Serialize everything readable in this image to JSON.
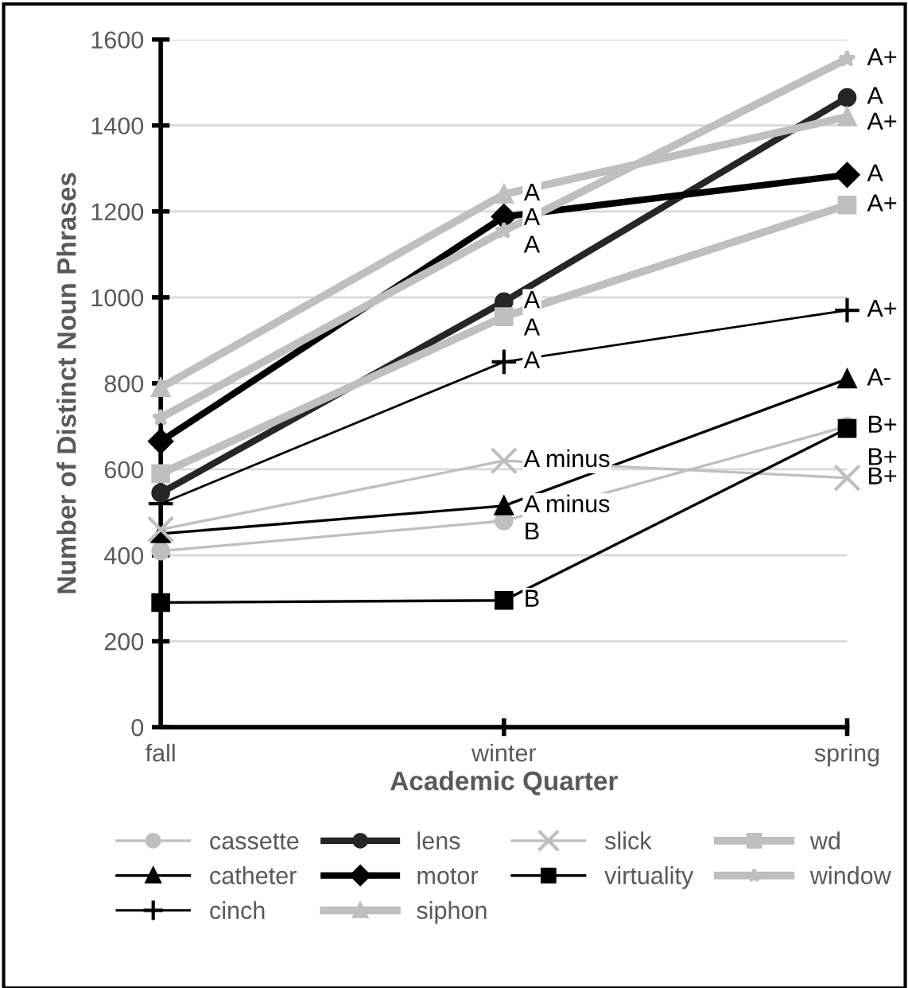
{
  "chart_data": {
    "type": "line",
    "xlabel": "Academic Quarter",
    "ylabel": "Number of Distinct Noun Phrases",
    "categories": [
      "fall",
      "winter",
      "spring"
    ],
    "ylim": [
      0,
      1600
    ],
    "yticks": [
      0,
      200,
      400,
      600,
      800,
      1000,
      1200,
      1400,
      1600
    ],
    "grid": "y",
    "legend": "bottom",
    "series": [
      {
        "name": "cassette",
        "color": "#bfbfbf",
        "marker": "circle",
        "values": [
          410,
          480,
          700
        ],
        "value_labels": [
          null,
          "B",
          "B+"
        ]
      },
      {
        "name": "catheter",
        "color": "#000000",
        "marker": "triangle",
        "values": [
          450,
          515,
          810
        ],
        "value_labels": [
          null,
          "A minus",
          "A-"
        ]
      },
      {
        "name": "cinch",
        "color": "#000000",
        "marker": "plus",
        "values": [
          520,
          850,
          970
        ],
        "value_labels": [
          null,
          "A",
          "A+"
        ]
      },
      {
        "name": "lens",
        "color": "#262626",
        "marker": "circle",
        "values": [
          545,
          990,
          1465
        ],
        "value_labels": [
          null,
          "A",
          "A"
        ]
      },
      {
        "name": "motor",
        "color": "#000000",
        "marker": "diamond",
        "values": [
          665,
          1188,
          1285
        ],
        "value_labels": [
          null,
          "A",
          "A"
        ]
      },
      {
        "name": "siphon",
        "color": "#bfbfbf",
        "marker": "triangle",
        "values": [
          790,
          1240,
          1420
        ],
        "value_labels": [
          null,
          "A",
          "A+"
        ]
      },
      {
        "name": "slick",
        "color": "#bfbfbf",
        "marker": "cross",
        "values": [
          460,
          620,
          580
        ],
        "value_labels": [
          null,
          "A minus",
          "B+"
        ]
      },
      {
        "name": "virtuality",
        "color": "#000000",
        "marker": "square",
        "values": [
          290,
          295,
          695
        ],
        "value_labels": [
          null,
          "B",
          "B+"
        ]
      },
      {
        "name": "wd",
        "color": "#bfbfbf",
        "marker": "square",
        "values": [
          590,
          955,
          1215
        ],
        "value_labels": [
          null,
          "A",
          "A+"
        ]
      },
      {
        "name": "window",
        "color": "#bfbfbf",
        "marker": "star",
        "values": [
          720,
          1155,
          1555
        ],
        "value_labels": [
          null,
          "A",
          "A+"
        ]
      }
    ]
  }
}
